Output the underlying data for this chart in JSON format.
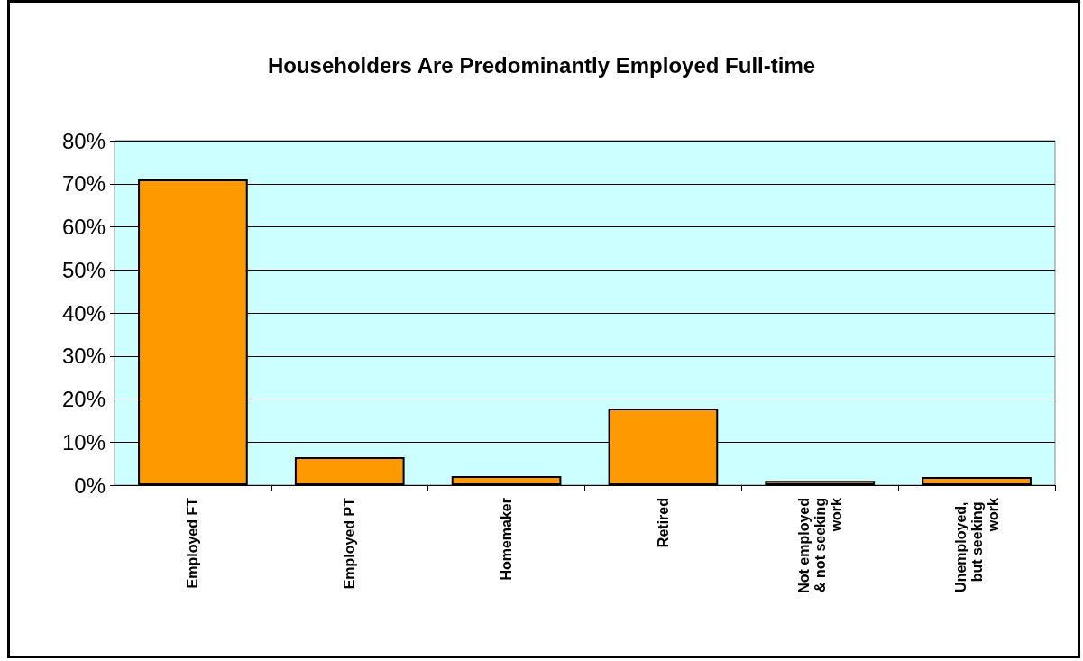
{
  "chart_data": {
    "type": "bar",
    "title": "Householders Are Predominantly Employed Full-time",
    "categories": [
      "Employed FT",
      "Employed PT",
      "Homemaker",
      "Retired",
      "Not employed & not seeking work",
      "Unemployed, but seeking work"
    ],
    "values": [
      71,
      6.5,
      2.1,
      17.8,
      1,
      1.9
    ],
    "color": "#ff9900",
    "ylim": [
      0,
      80
    ],
    "yticks": [
      {
        "value": 0,
        "label": "0%"
      },
      {
        "value": 10,
        "label": "10%"
      },
      {
        "value": 20,
        "label": "20%"
      },
      {
        "value": 30,
        "label": "30%"
      },
      {
        "value": 40,
        "label": "40%"
      },
      {
        "value": 50,
        "label": "50%"
      },
      {
        "value": 60,
        "label": "60%"
      },
      {
        "value": 70,
        "label": "70%"
      },
      {
        "value": 80,
        "label": "80%"
      }
    ],
    "grid": "y"
  }
}
